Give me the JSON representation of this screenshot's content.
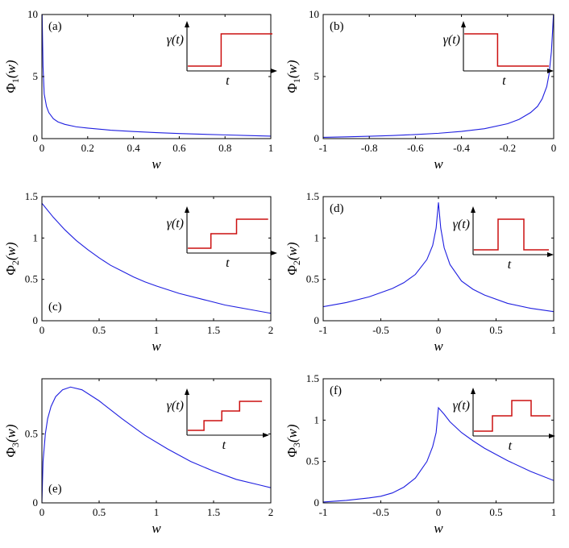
{
  "chart_data": [
    {
      "type": "line",
      "panel_label": "(a)",
      "ylabel": "Φ1(w)",
      "ylabel_main": "Φ",
      "ylabel_sub": "1",
      "ylabel_arg": "(w)",
      "xlabel": "w",
      "xlim": [
        0,
        1
      ],
      "ylim": [
        0,
        10
      ],
      "xticks": [
        0,
        0.2,
        0.4,
        0.6,
        0.8,
        1
      ],
      "xtick_labels": [
        "0",
        "0.2",
        "0.4",
        "0.6",
        "0.8",
        "1"
      ],
      "yticks": [
        0,
        5,
        10
      ],
      "ytick_labels": [
        "0",
        "5",
        "10"
      ],
      "series": [
        {
          "name": "Φ1",
          "color": "#1f1fe0",
          "x": [
            0.001,
            0.005,
            0.01,
            0.02,
            0.03,
            0.05,
            0.07,
            0.1,
            0.15,
            0.2,
            0.3,
            0.4,
            0.5,
            0.6,
            0.7,
            0.8,
            0.9,
            1.0
          ],
          "y": [
            10,
            5.8,
            3.6,
            2.6,
            2.1,
            1.6,
            1.35,
            1.15,
            0.95,
            0.85,
            0.68,
            0.57,
            0.48,
            0.41,
            0.35,
            0.3,
            0.25,
            0.2
          ]
        }
      ],
      "inset": {
        "ylabel": "γ(t)",
        "xlabel": "t",
        "color": "#cc1010",
        "steps": [
          {
            "t": 0,
            "v": 1
          },
          {
            "t": 0.4,
            "v": 2
          }
        ],
        "t_end": 1.0,
        "v_max": 2
      }
    },
    {
      "type": "line",
      "panel_label": "(b)",
      "ylabel": "Φ1(w)",
      "ylabel_main": "Φ",
      "ylabel_sub": "1",
      "ylabel_arg": "(w)",
      "xlabel": "w",
      "xlim": [
        -1,
        0
      ],
      "ylim": [
        0,
        10
      ],
      "xticks": [
        -1,
        -0.8,
        -0.6,
        -0.4,
        -0.2,
        0
      ],
      "xtick_labels": [
        "-1",
        "-0.8",
        "-0.6",
        "-0.4",
        "-0.2",
        "0"
      ],
      "yticks": [
        0,
        5,
        10
      ],
      "ytick_labels": [
        "0",
        "5",
        "10"
      ],
      "series": [
        {
          "name": "Φ1",
          "color": "#1f1fe0",
          "x": [
            -1.0,
            -0.9,
            -0.8,
            -0.7,
            -0.6,
            -0.5,
            -0.4,
            -0.3,
            -0.2,
            -0.15,
            -0.1,
            -0.07,
            -0.05,
            -0.03,
            -0.02,
            -0.01,
            -0.005,
            -0.001
          ],
          "y": [
            0.1,
            0.14,
            0.19,
            0.25,
            0.33,
            0.43,
            0.58,
            0.8,
            1.2,
            1.55,
            2.1,
            2.6,
            3.2,
            4.2,
            5.2,
            7.0,
            8.6,
            10
          ]
        }
      ],
      "inset": {
        "ylabel": "γ(t)",
        "xlabel": "t",
        "color": "#cc1010",
        "steps": [
          {
            "t": 0,
            "v": 2
          },
          {
            "t": 0.4,
            "v": 1
          }
        ],
        "t_end": 1.0,
        "v_max": 2
      }
    },
    {
      "type": "line",
      "panel_label": "(c)",
      "ylabel": "Φ2(w)",
      "ylabel_main": "Φ",
      "ylabel_sub": "2",
      "ylabel_arg": "(w)",
      "xlabel": "w",
      "xlim": [
        0,
        2
      ],
      "ylim": [
        0,
        1.5
      ],
      "xticks": [
        0,
        0.5,
        1,
        1.5,
        2
      ],
      "xtick_labels": [
        "0",
        "0.5",
        "1",
        "1.5",
        "2"
      ],
      "yticks": [
        0,
        0.5,
        1,
        1.5
      ],
      "ytick_labels": [
        "0",
        "0.5",
        "1",
        "1.5"
      ],
      "series": [
        {
          "name": "Φ2",
          "color": "#1f1fe0",
          "x": [
            0,
            0.1,
            0.2,
            0.3,
            0.4,
            0.5,
            0.6,
            0.7,
            0.8,
            0.9,
            1.0,
            1.2,
            1.4,
            1.6,
            1.8,
            2.0
          ],
          "y": [
            1.42,
            1.25,
            1.1,
            0.97,
            0.86,
            0.76,
            0.67,
            0.6,
            0.53,
            0.47,
            0.42,
            0.33,
            0.26,
            0.19,
            0.14,
            0.09
          ]
        }
      ],
      "inset": {
        "ylabel": "γ(t)",
        "xlabel": "t",
        "color": "#cc1010",
        "steps": [
          {
            "t": 0,
            "v": 1
          },
          {
            "t": 0.28,
            "v": 2
          },
          {
            "t": 0.58,
            "v": 3
          }
        ],
        "t_end": 0.95,
        "v_max": 3
      }
    },
    {
      "type": "line",
      "panel_label": "(d)",
      "ylabel": "Φ2(w)",
      "ylabel_main": "Φ",
      "ylabel_sub": "2",
      "ylabel_arg": "(w)",
      "xlabel": "w",
      "xlim": [
        -1,
        1
      ],
      "ylim": [
        0,
        1.5
      ],
      "xticks": [
        -1,
        -0.5,
        0,
        0.5,
        1
      ],
      "xtick_labels": [
        "-1",
        "-0.5",
        "0",
        "0.5",
        "1"
      ],
      "yticks": [
        0,
        0.5,
        1,
        1.5
      ],
      "ytick_labels": [
        "0",
        "0.5",
        "1",
        "1.5"
      ],
      "series": [
        {
          "name": "Φ2",
          "color": "#1f1fe0",
          "x": [
            -1.0,
            -0.8,
            -0.6,
            -0.4,
            -0.3,
            -0.2,
            -0.1,
            -0.05,
            -0.02,
            0,
            0.02,
            0.05,
            0.1,
            0.2,
            0.3,
            0.4,
            0.6,
            0.8,
            1.0
          ],
          "y": [
            0.17,
            0.22,
            0.29,
            0.39,
            0.46,
            0.56,
            0.74,
            0.91,
            1.12,
            1.43,
            1.12,
            0.88,
            0.68,
            0.48,
            0.38,
            0.31,
            0.21,
            0.15,
            0.11
          ]
        }
      ],
      "inset": {
        "ylabel": "γ(t)",
        "xlabel": "t",
        "color": "#cc1010",
        "steps": [
          {
            "t": 0,
            "v": 1
          },
          {
            "t": 0.33,
            "v": 3
          },
          {
            "t": 0.67,
            "v": 1
          }
        ],
        "t_end": 1.0,
        "v_max": 3
      }
    },
    {
      "type": "line",
      "panel_label": "(e)",
      "ylabel": "Φ3(w)",
      "ylabel_main": "Φ",
      "ylabel_sub": "3",
      "ylabel_arg": "(w)",
      "xlabel": "w",
      "xlim": [
        0,
        2
      ],
      "ylim": [
        0,
        0.9
      ],
      "xticks": [
        0,
        0.5,
        1,
        1.5,
        2
      ],
      "xtick_labels": [
        "0",
        "0.5",
        "1",
        "1.5",
        "2"
      ],
      "yticks": [
        0,
        0.5
      ],
      "ytick_labels": [
        "0",
        "0.5"
      ],
      "series": [
        {
          "name": "Φ3",
          "color": "#1f1fe0",
          "x": [
            0,
            0.01,
            0.03,
            0.05,
            0.08,
            0.12,
            0.18,
            0.25,
            0.35,
            0.5,
            0.7,
            0.9,
            1.1,
            1.3,
            1.5,
            1.7,
            1.9,
            2.0
          ],
          "y": [
            0,
            0.3,
            0.5,
            0.61,
            0.7,
            0.77,
            0.82,
            0.84,
            0.82,
            0.74,
            0.61,
            0.49,
            0.39,
            0.3,
            0.23,
            0.17,
            0.13,
            0.11
          ]
        }
      ],
      "inset": {
        "ylabel": "γ(t)",
        "xlabel": "t",
        "color": "#cc1010",
        "steps": [
          {
            "t": 0,
            "v": 1
          },
          {
            "t": 0.22,
            "v": 2
          },
          {
            "t": 0.45,
            "v": 3
          },
          {
            "t": 0.68,
            "v": 4
          }
        ],
        "t_end": 0.97,
        "v_max": 4
      }
    },
    {
      "type": "line",
      "panel_label": "(f)",
      "ylabel": "Φ3(w)",
      "ylabel_main": "Φ",
      "ylabel_sub": "3",
      "ylabel_arg": "(w)",
      "xlabel": "w",
      "xlim": [
        -1,
        1
      ],
      "ylim": [
        0,
        1.5
      ],
      "xticks": [
        -1,
        -0.5,
        0,
        0.5,
        1
      ],
      "xtick_labels": [
        "-1",
        "-0.5",
        "0",
        "0.5",
        "1"
      ],
      "yticks": [
        0,
        0.5,
        1,
        1.5
      ],
      "ytick_labels": [
        "0",
        "0.5",
        "1",
        "1.5"
      ],
      "series": [
        {
          "name": "Φ3",
          "color": "#1f1fe0",
          "x": [
            -1.0,
            -0.8,
            -0.6,
            -0.5,
            -0.4,
            -0.3,
            -0.2,
            -0.1,
            -0.05,
            -0.02,
            0,
            0.05,
            0.1,
            0.2,
            0.3,
            0.4,
            0.6,
            0.8,
            1.0
          ],
          "y": [
            0.01,
            0.03,
            0.06,
            0.08,
            0.12,
            0.19,
            0.3,
            0.5,
            0.68,
            0.85,
            1.15,
            1.07,
            0.98,
            0.85,
            0.75,
            0.66,
            0.51,
            0.38,
            0.27
          ]
        }
      ],
      "inset": {
        "ylabel": "γ(t)",
        "xlabel": "t",
        "color": "#cc1010",
        "steps": [
          {
            "t": 0,
            "v": 1
          },
          {
            "t": 0.25,
            "v": 2
          },
          {
            "t": 0.5,
            "v": 3
          },
          {
            "t": 0.75,
            "v": 2
          }
        ],
        "t_end": 1.0,
        "v_max": 3
      }
    }
  ]
}
